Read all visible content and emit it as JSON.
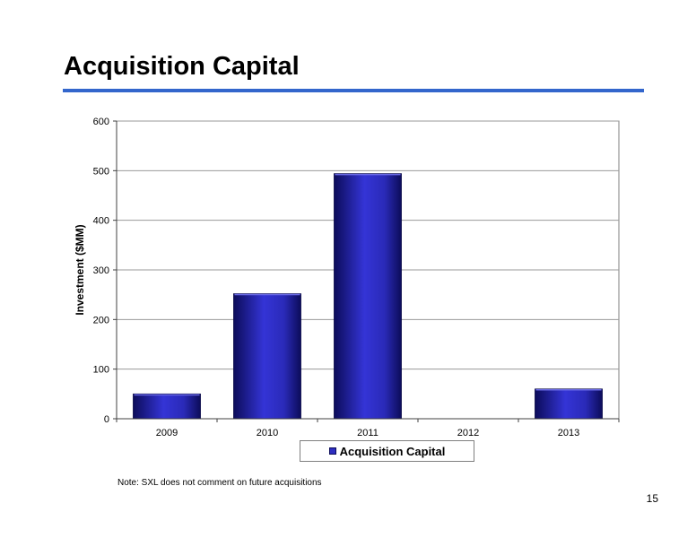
{
  "slide": {
    "title": "Acquisition Capital",
    "note": "Note: SXL does not comment on future acquisitions",
    "page_number": "15"
  },
  "colors": {
    "accent_rule": "#3366cc",
    "bar_fill": "#2e2ec0",
    "bar_dark": "#0c0c5a",
    "gridline": "#9a9a9a"
  },
  "chart_data": {
    "type": "bar",
    "categories": [
      "2009",
      "2010",
      "2011",
      "2012",
      "2013"
    ],
    "series": [
      {
        "name": "Acquisition Capital",
        "values": [
          50,
          252,
          494,
          0,
          60
        ]
      }
    ],
    "title": "",
    "xlabel": "",
    "ylabel": "Investment ($MM)",
    "ylim": [
      0,
      600
    ],
    "yticks": [
      "0",
      "100",
      "200",
      "300",
      "400",
      "500",
      "600"
    ],
    "grid": true,
    "legend": "bottom"
  }
}
